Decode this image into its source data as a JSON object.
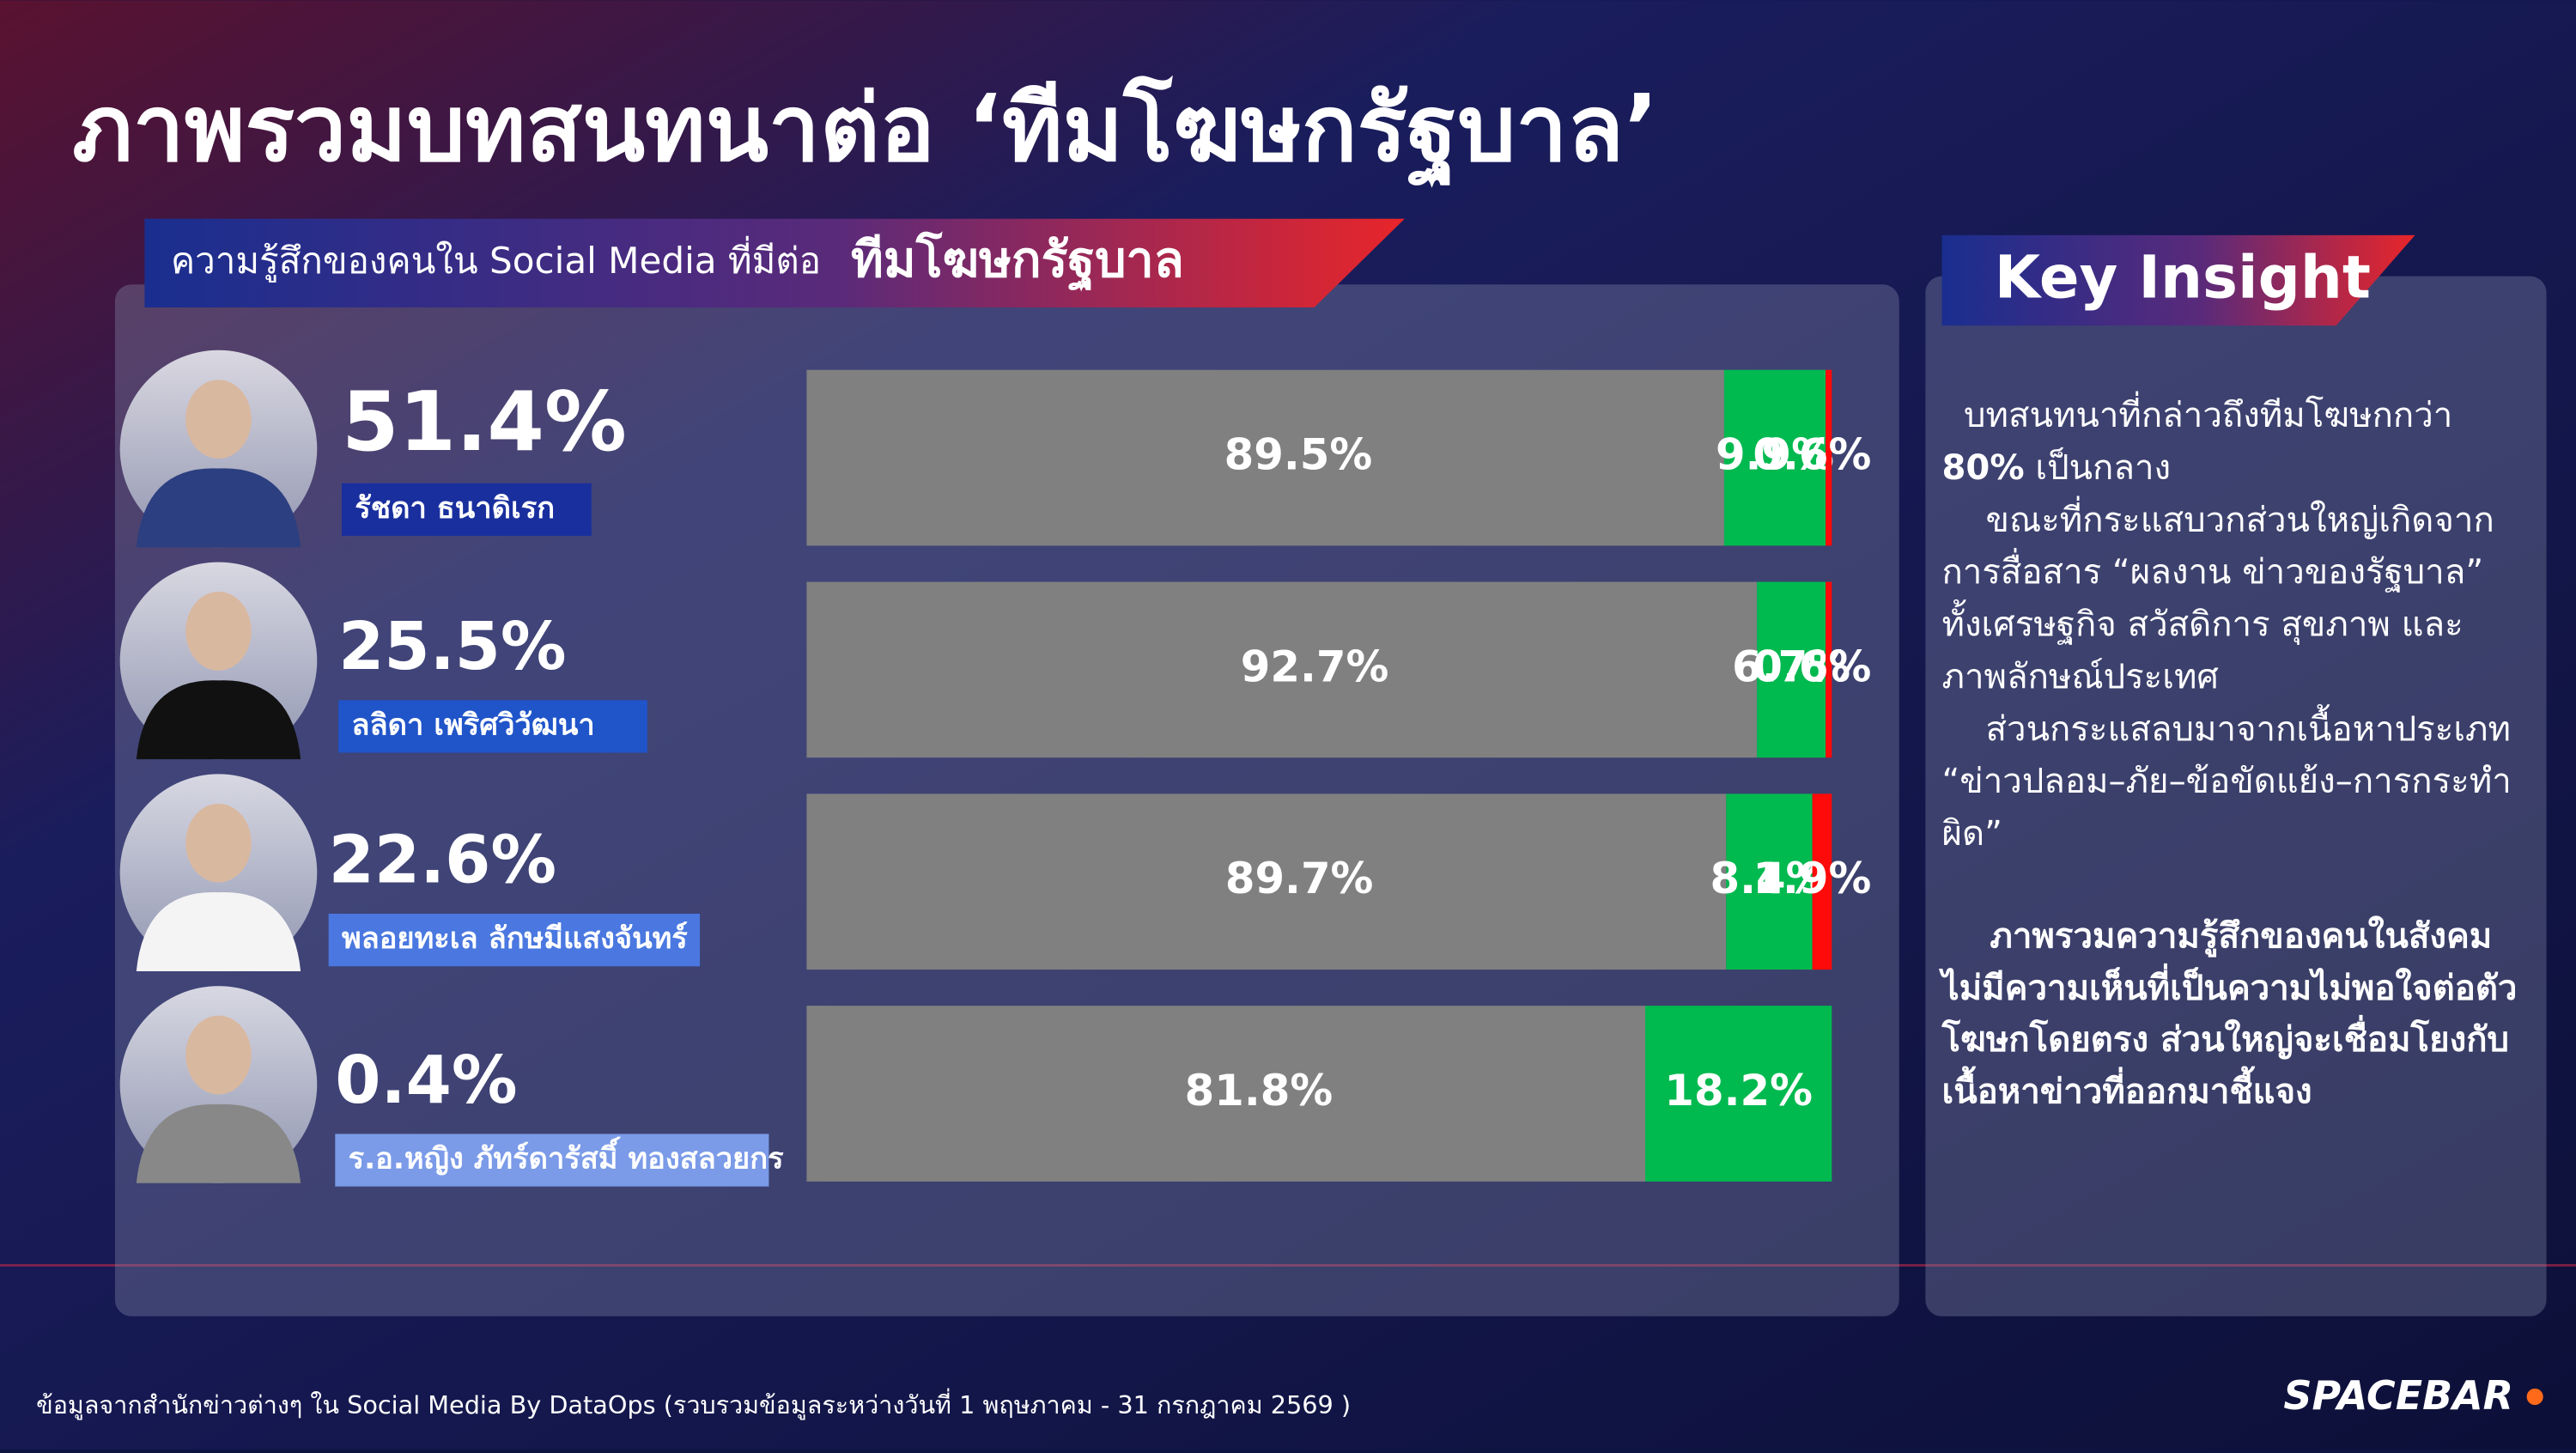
{
  "header": {
    "title": "ภาพรวมบทสนทนาต่อ ‘ทีมโฆษกรัฐบาล’"
  },
  "chart_data": {
    "type": "stacked-bar-horizontal",
    "subtitle": "ความรู้สึกของคนใน Social Media ที่มีต่อ",
    "subtitle_emphasis": "ทีมโฆษกรัฐบาล",
    "categories": [
      "รัชดา ธนาดิเรก",
      "ลลิดา เพริศวิวัฒนา",
      "พลอยทะเล ลักษมีแสงจันทร์",
      "ร.อ.หญิง ภัทร์ดารัสมิ์ ทองสลวยกร"
    ],
    "shares": [
      "51.4%",
      "25.5%",
      "22.6%",
      "0.4%"
    ],
    "xlim": [
      0,
      100
    ],
    "series": [
      {
        "color": "#808080",
        "values": [
          89.5,
          92.7,
          89.7,
          81.8
        ],
        "value_labels": [
          "89.5%",
          "92.7%",
          "89.7%",
          "81.8%"
        ]
      },
      {
        "color": "#00b94f",
        "values": [
          9.9,
          6.7,
          8.4,
          18.2
        ],
        "value_labels": [
          "9.9%",
          "6.7%",
          "8.4%",
          "18.2%"
        ]
      },
      {
        "color": "#ff0a0a",
        "values": [
          0.6,
          0.6,
          1.9,
          null
        ],
        "value_labels": [
          "0.6%",
          "0.6%",
          "1.9%",
          null
        ]
      }
    ]
  },
  "insight": {
    "title": "Key Insight",
    "lines": [
      [
        {
          "text": "  บทสนทนาที่กล่าวถึงทีมโฆษกกว่า"
        }
      ],
      [
        {
          "text": "80%",
          "bold": true
        },
        {
          "text": " เป็นกลาง"
        }
      ],
      [
        {
          "text": "    ขณะที่กระแสบวกส่วนใหญ่เกิดจาก"
        }
      ],
      [
        {
          "text": "การสื่อสาร “ผลงาน ข่าวของรัฐบาล”"
        }
      ],
      [
        {
          "text": "ทั้งเศรษฐกิจ สวัสดิการ สุขภาพ และ"
        }
      ],
      [
        {
          "text": "ภาพลักษณ์ประเทศ"
        }
      ],
      [
        {
          "text": "    ส่วนกระแสลบมาจากเนื้อหาประเภท"
        }
      ],
      [
        {
          "text": "“ข่าวปลอม–ภัย–ข้อขัดแย้ง–การกระทำ"
        }
      ],
      [
        {
          "text": "ผิด”"
        }
      ]
    ],
    "bold_lines": [
      "    ภาพรวมความรู้สึกของคนในสังคม",
      "ไม่มีความเห็นที่เป็นความไม่พอใจต่อตัว",
      "โฆษกโดยตรง ส่วนใหญ่จะเชื่อมโยงกับ",
      "เนื้อหาข่าวที่ออกมาชี้แจง"
    ]
  },
  "footer": {
    "source": "ข้อมูลจากสำนักข่าวต่างๆ ใน Social Media By DataOps (รวบรวมข้อมูลระหว่างวันที่ 1 พฤษภาคม - 31 กรกฎาคม 2569 )",
    "brand": "SPACEBAR"
  }
}
